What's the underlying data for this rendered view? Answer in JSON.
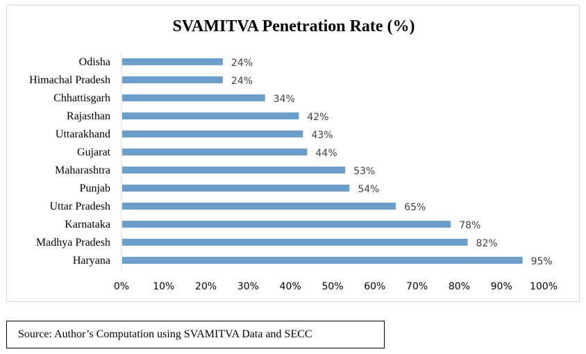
{
  "chart_data": {
    "type": "bar",
    "orientation": "horizontal",
    "title": "SVAMITVA Penetration Rate (%)",
    "categories": [
      "Odisha",
      "Himachal Pradesh",
      "Chhattisgarh",
      "Rajasthan",
      "Uttarakhand",
      "Gujarat",
      "Maharashtra",
      "Punjab",
      "Uttar Pradesh",
      "Karnataka",
      "Madhya Pradesh",
      "Haryana"
    ],
    "values": [
      24,
      24,
      34,
      42,
      43,
      44,
      53,
      54,
      65,
      78,
      82,
      95
    ],
    "value_labels": [
      "24%",
      "24%",
      "34%",
      "42%",
      "43%",
      "44%",
      "53%",
      "54%",
      "65%",
      "78%",
      "82%",
      "95%"
    ],
    "xlim": [
      0,
      100
    ],
    "xticks": [
      0,
      10,
      20,
      30,
      40,
      50,
      60,
      70,
      80,
      90,
      100
    ],
    "xtick_labels": [
      "0%",
      "10%",
      "20%",
      "30%",
      "40%",
      "50%",
      "60%",
      "70%",
      "80%",
      "90%",
      "100%"
    ],
    "xlabel": "",
    "ylabel": "",
    "grid": false,
    "bar_color": "#6a9ecb"
  },
  "source": {
    "text": "Source: Author’s Computation using SVAMITVA Data and SECC"
  }
}
